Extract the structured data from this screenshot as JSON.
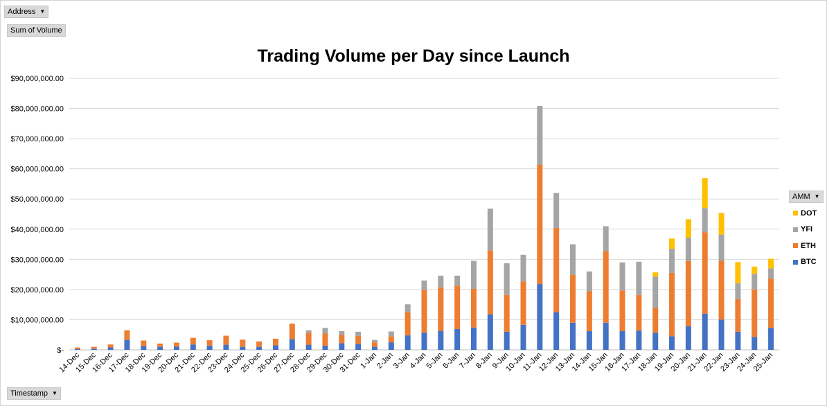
{
  "filters": {
    "address_label": "Address",
    "sum_label": "Sum of Volume",
    "timestamp_label": "Timestamp",
    "amm_label": "AMM"
  },
  "chart_data": {
    "type": "bar",
    "stacked": true,
    "title": "Trading Volume per Day since Launch",
    "xlabel": "",
    "ylabel": "",
    "ylim": [
      0,
      90000000
    ],
    "yticks": [
      0,
      10000000,
      20000000,
      30000000,
      40000000,
      50000000,
      60000000,
      70000000,
      80000000,
      90000000
    ],
    "ytick_labels": [
      "$-",
      "$10,000,000.00",
      "$20,000,000.00",
      "$30,000,000.00",
      "$40,000,000.00",
      "$50,000,000.00",
      "$60,000,000.00",
      "$70,000,000.00",
      "$80,000,000.00",
      "$90,000,000.00"
    ],
    "grid": true,
    "legend_position": "right",
    "categories": [
      "14-Dec",
      "15-Dec",
      "16-Dec",
      "17-Dec",
      "18-Dec",
      "19-Dec",
      "20-Dec",
      "21-Dec",
      "22-Dec",
      "23-Dec",
      "24-Dec",
      "25-Dec",
      "26-Dec",
      "27-Dec",
      "28-Dec",
      "29-Dec",
      "30-Dec",
      "31-Dec",
      "1-Jan",
      "2-Jan",
      "3-Jan",
      "4-Jan",
      "5-Jan",
      "6-Jan",
      "7-Jan",
      "8-Jan",
      "9-Jan",
      "10-Jan",
      "11-Jan",
      "12-Jan",
      "13-Jan",
      "14-Jan",
      "15-Jan",
      "16-Jan",
      "17-Jan",
      "18-Jan",
      "19-Jan",
      "20-Jan",
      "21-Jan",
      "22-Jan",
      "23-Jan",
      "24-Jan",
      "25-Jan"
    ],
    "series": [
      {
        "name": "BTC",
        "color": "#4472c4",
        "values": [
          300000,
          400000,
          800000,
          3300000,
          1300000,
          1000000,
          1100000,
          1800000,
          1400000,
          1700000,
          1000000,
          1000000,
          1500000,
          3600000,
          1700000,
          1400000,
          2200000,
          2000000,
          1000000,
          2500000,
          4800000,
          5700000,
          6300000,
          6900000,
          7400000,
          11800000,
          6000000,
          8300000,
          21800000,
          12500000,
          9000000,
          6200000,
          9000000,
          6200000,
          6400000,
          5700000,
          4500000,
          7800000,
          12000000,
          10000000,
          6000000,
          4300000,
          7300000
        ]
      },
      {
        "name": "ETH",
        "color": "#ed7d31",
        "values": [
          500000,
          600000,
          1000000,
          3200000,
          1800000,
          1100000,
          1300000,
          2200000,
          1800000,
          3000000,
          2400000,
          1800000,
          2200000,
          5100000,
          4000000,
          4000000,
          2800000,
          2600000,
          1500000,
          2000000,
          7700000,
          14200000,
          14400000,
          14400000,
          12800000,
          21200000,
          12200000,
          14400000,
          39600000,
          27900000,
          15800000,
          13200000,
          23800000,
          13500000,
          11800000,
          8300000,
          21000000,
          21600000,
          27000000,
          19500000,
          10800000,
          15700000,
          16400000
        ]
      },
      {
        "name": "YFI",
        "color": "#a5a5a5",
        "values": [
          0,
          0,
          0,
          0,
          0,
          0,
          0,
          0,
          0,
          0,
          0,
          0,
          0,
          0,
          800000,
          1900000,
          1200000,
          1400000,
          800000,
          1600000,
          2600000,
          3100000,
          3900000,
          3300000,
          9300000,
          13800000,
          10500000,
          8800000,
          19400000,
          11600000,
          10200000,
          6600000,
          8200000,
          9300000,
          11000000,
          10300000,
          8000000,
          7800000,
          8000000,
          8700000,
          5300000,
          5200000,
          3300000
        ]
      },
      {
        "name": "DOT",
        "color": "#ffc000",
        "values": [
          0,
          0,
          0,
          0,
          0,
          0,
          0,
          0,
          0,
          0,
          0,
          0,
          0,
          0,
          0,
          0,
          0,
          0,
          0,
          0,
          0,
          0,
          0,
          0,
          0,
          0,
          0,
          0,
          0,
          0,
          0,
          0,
          0,
          0,
          0,
          1400000,
          3400000,
          6100000,
          9900000,
          7200000,
          7000000,
          2400000,
          3200000
        ]
      }
    ],
    "legend_order": [
      "DOT",
      "YFI",
      "ETH",
      "BTC"
    ]
  }
}
